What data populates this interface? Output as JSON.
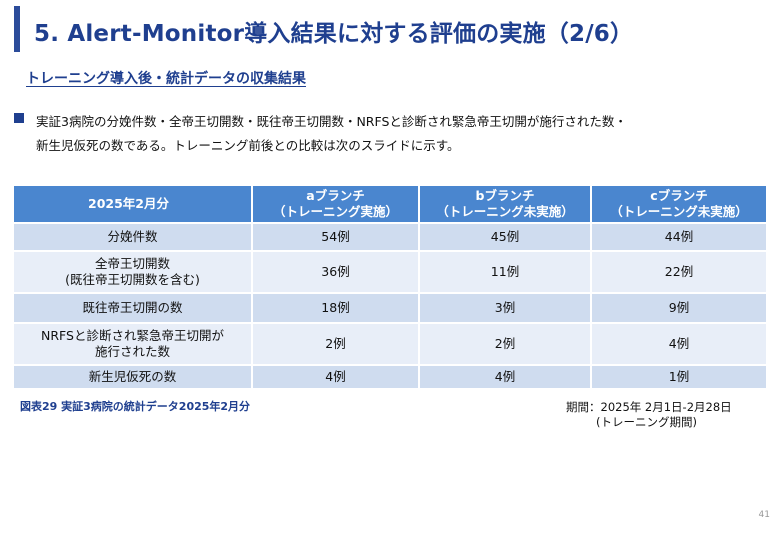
{
  "header": {
    "title": "5. Alert-Monitor導入結果に対する評価の実施（2/6）",
    "subtitle": "トレーニング導入後・統計データの収集結果"
  },
  "body": {
    "bullet_line1": "実証3病院の分娩件数・全帝王切開数・既往帝王切開数・NRFSと診断され緊急帝王切開が施行された数・",
    "bullet_line2": "新生児仮死の数である。トレーニング前後との比較は次のスライドに示す。"
  },
  "table": {
    "headers": [
      {
        "line1": "2025年2月分",
        "line2": ""
      },
      {
        "line1": "aブランチ",
        "line2": "（トレーニング実施）"
      },
      {
        "line1": "bブランチ",
        "line2": "（トレーニング未実施）"
      },
      {
        "line1": "cブランチ",
        "line2": "（トレーニング未実施）"
      }
    ],
    "rows": [
      {
        "label1": "分娩件数",
        "label2": "",
        "a": "54例",
        "b": "45例",
        "c": "44例"
      },
      {
        "label1": "全帝王切開数",
        "label2": "(既往帝王切開数を含む)",
        "a": "36例",
        "b": "11例",
        "c": "22例"
      },
      {
        "label1": "既往帝王切開の数",
        "label2": "",
        "a": "18例",
        "b": "3例",
        "c": "9例"
      },
      {
        "label1": "NRFSと診断され緊急帝王切開が",
        "label2": "施行された数",
        "a": "2例",
        "b": "2例",
        "c": "4例"
      },
      {
        "label1": "新生児仮死の数",
        "label2": "",
        "a": "4例",
        "b": "4例",
        "c": "1例"
      }
    ]
  },
  "caption": "図表29 実証3病院の統計データ2025年2月分",
  "period": {
    "line1": "期間：2025年 2月1日-2月28日",
    "line2": "(トレーニング期間)"
  },
  "page_number": "41"
}
